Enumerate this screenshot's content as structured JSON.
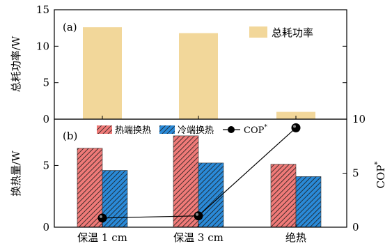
{
  "chart_data": [
    {
      "type": "bar",
      "panel_label": "(a)",
      "categories": [
        "保温 1 cm",
        "保温 3 cm",
        "绝热"
      ],
      "series": [
        {
          "name": "总耗功率",
          "values": [
            12.6,
            11.8,
            1.0
          ],
          "color": "#f2d79a"
        }
      ],
      "ylabel": "总耗功率/W",
      "ylim": [
        0,
        15
      ],
      "yticks": [
        0,
        5,
        10,
        15
      ],
      "legend": "top-right"
    },
    {
      "type": "bar",
      "panel_label": "(b)",
      "categories": [
        "保温 1 cm",
        "保温 3 cm",
        "绝热"
      ],
      "series": [
        {
          "name": "热端换热",
          "values": [
            6.4,
            7.4,
            5.1
          ],
          "color": "#f07a78",
          "hatch": "diagonal"
        },
        {
          "name": "冷端换热",
          "values": [
            4.6,
            5.2,
            4.1
          ],
          "color": "#2a8ad8",
          "hatch": "diagonal"
        }
      ],
      "line_series": {
        "name": "COP",
        "name_sup": "*",
        "values": [
          0.85,
          1.05,
          9.2
        ],
        "axis": "right",
        "color": "#000000"
      },
      "ylabel": "换热量/W",
      "ylim": [
        0,
        8.75
      ],
      "yticks": [
        0,
        5
      ],
      "y2label": "COP",
      "y2label_sup": "*",
      "y2lim": [
        0,
        10
      ],
      "y2ticks": [
        0,
        5,
        10
      ],
      "legend": "top"
    }
  ]
}
